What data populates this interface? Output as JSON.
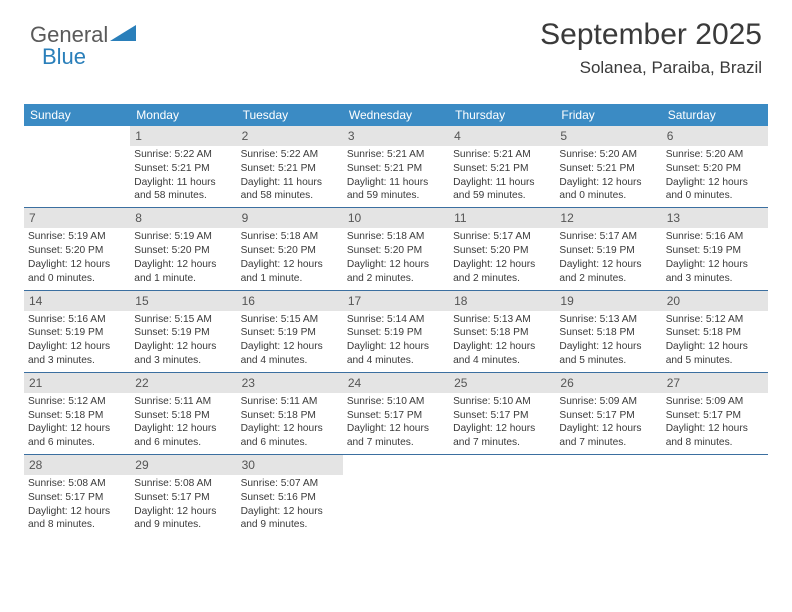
{
  "logo": {
    "text1": "General",
    "text2": "Blue",
    "shape_color": "#2a7fba"
  },
  "header": {
    "month_title": "September 2025",
    "location": "Solanea, Paraiba, Brazil"
  },
  "colors": {
    "header_bar": "#3b8bc4",
    "daynum_bg": "#e4e4e4",
    "rule": "#3b6fa0",
    "text": "#3a3a3a"
  },
  "weekdays": [
    "Sunday",
    "Monday",
    "Tuesday",
    "Wednesday",
    "Thursday",
    "Friday",
    "Saturday"
  ],
  "weeks": [
    [
      {
        "n": "",
        "sunrise": "",
        "sunset": "",
        "daylight": ""
      },
      {
        "n": "1",
        "sunrise": "Sunrise: 5:22 AM",
        "sunset": "Sunset: 5:21 PM",
        "daylight": "Daylight: 11 hours and 58 minutes."
      },
      {
        "n": "2",
        "sunrise": "Sunrise: 5:22 AM",
        "sunset": "Sunset: 5:21 PM",
        "daylight": "Daylight: 11 hours and 58 minutes."
      },
      {
        "n": "3",
        "sunrise": "Sunrise: 5:21 AM",
        "sunset": "Sunset: 5:21 PM",
        "daylight": "Daylight: 11 hours and 59 minutes."
      },
      {
        "n": "4",
        "sunrise": "Sunrise: 5:21 AM",
        "sunset": "Sunset: 5:21 PM",
        "daylight": "Daylight: 11 hours and 59 minutes."
      },
      {
        "n": "5",
        "sunrise": "Sunrise: 5:20 AM",
        "sunset": "Sunset: 5:21 PM",
        "daylight": "Daylight: 12 hours and 0 minutes."
      },
      {
        "n": "6",
        "sunrise": "Sunrise: 5:20 AM",
        "sunset": "Sunset: 5:20 PM",
        "daylight": "Daylight: 12 hours and 0 minutes."
      }
    ],
    [
      {
        "n": "7",
        "sunrise": "Sunrise: 5:19 AM",
        "sunset": "Sunset: 5:20 PM",
        "daylight": "Daylight: 12 hours and 0 minutes."
      },
      {
        "n": "8",
        "sunrise": "Sunrise: 5:19 AM",
        "sunset": "Sunset: 5:20 PM",
        "daylight": "Daylight: 12 hours and 1 minute."
      },
      {
        "n": "9",
        "sunrise": "Sunrise: 5:18 AM",
        "sunset": "Sunset: 5:20 PM",
        "daylight": "Daylight: 12 hours and 1 minute."
      },
      {
        "n": "10",
        "sunrise": "Sunrise: 5:18 AM",
        "sunset": "Sunset: 5:20 PM",
        "daylight": "Daylight: 12 hours and 2 minutes."
      },
      {
        "n": "11",
        "sunrise": "Sunrise: 5:17 AM",
        "sunset": "Sunset: 5:20 PM",
        "daylight": "Daylight: 12 hours and 2 minutes."
      },
      {
        "n": "12",
        "sunrise": "Sunrise: 5:17 AM",
        "sunset": "Sunset: 5:19 PM",
        "daylight": "Daylight: 12 hours and 2 minutes."
      },
      {
        "n": "13",
        "sunrise": "Sunrise: 5:16 AM",
        "sunset": "Sunset: 5:19 PM",
        "daylight": "Daylight: 12 hours and 3 minutes."
      }
    ],
    [
      {
        "n": "14",
        "sunrise": "Sunrise: 5:16 AM",
        "sunset": "Sunset: 5:19 PM",
        "daylight": "Daylight: 12 hours and 3 minutes."
      },
      {
        "n": "15",
        "sunrise": "Sunrise: 5:15 AM",
        "sunset": "Sunset: 5:19 PM",
        "daylight": "Daylight: 12 hours and 3 minutes."
      },
      {
        "n": "16",
        "sunrise": "Sunrise: 5:15 AM",
        "sunset": "Sunset: 5:19 PM",
        "daylight": "Daylight: 12 hours and 4 minutes."
      },
      {
        "n": "17",
        "sunrise": "Sunrise: 5:14 AM",
        "sunset": "Sunset: 5:19 PM",
        "daylight": "Daylight: 12 hours and 4 minutes."
      },
      {
        "n": "18",
        "sunrise": "Sunrise: 5:13 AM",
        "sunset": "Sunset: 5:18 PM",
        "daylight": "Daylight: 12 hours and 4 minutes."
      },
      {
        "n": "19",
        "sunrise": "Sunrise: 5:13 AM",
        "sunset": "Sunset: 5:18 PM",
        "daylight": "Daylight: 12 hours and 5 minutes."
      },
      {
        "n": "20",
        "sunrise": "Sunrise: 5:12 AM",
        "sunset": "Sunset: 5:18 PM",
        "daylight": "Daylight: 12 hours and 5 minutes."
      }
    ],
    [
      {
        "n": "21",
        "sunrise": "Sunrise: 5:12 AM",
        "sunset": "Sunset: 5:18 PM",
        "daylight": "Daylight: 12 hours and 6 minutes."
      },
      {
        "n": "22",
        "sunrise": "Sunrise: 5:11 AM",
        "sunset": "Sunset: 5:18 PM",
        "daylight": "Daylight: 12 hours and 6 minutes."
      },
      {
        "n": "23",
        "sunrise": "Sunrise: 5:11 AM",
        "sunset": "Sunset: 5:18 PM",
        "daylight": "Daylight: 12 hours and 6 minutes."
      },
      {
        "n": "24",
        "sunrise": "Sunrise: 5:10 AM",
        "sunset": "Sunset: 5:17 PM",
        "daylight": "Daylight: 12 hours and 7 minutes."
      },
      {
        "n": "25",
        "sunrise": "Sunrise: 5:10 AM",
        "sunset": "Sunset: 5:17 PM",
        "daylight": "Daylight: 12 hours and 7 minutes."
      },
      {
        "n": "26",
        "sunrise": "Sunrise: 5:09 AM",
        "sunset": "Sunset: 5:17 PM",
        "daylight": "Daylight: 12 hours and 7 minutes."
      },
      {
        "n": "27",
        "sunrise": "Sunrise: 5:09 AM",
        "sunset": "Sunset: 5:17 PM",
        "daylight": "Daylight: 12 hours and 8 minutes."
      }
    ],
    [
      {
        "n": "28",
        "sunrise": "Sunrise: 5:08 AM",
        "sunset": "Sunset: 5:17 PM",
        "daylight": "Daylight: 12 hours and 8 minutes."
      },
      {
        "n": "29",
        "sunrise": "Sunrise: 5:08 AM",
        "sunset": "Sunset: 5:17 PM",
        "daylight": "Daylight: 12 hours and 9 minutes."
      },
      {
        "n": "30",
        "sunrise": "Sunrise: 5:07 AM",
        "sunset": "Sunset: 5:16 PM",
        "daylight": "Daylight: 12 hours and 9 minutes."
      },
      {
        "n": "",
        "sunrise": "",
        "sunset": "",
        "daylight": ""
      },
      {
        "n": "",
        "sunrise": "",
        "sunset": "",
        "daylight": ""
      },
      {
        "n": "",
        "sunrise": "",
        "sunset": "",
        "daylight": ""
      },
      {
        "n": "",
        "sunrise": "",
        "sunset": "",
        "daylight": ""
      }
    ]
  ]
}
